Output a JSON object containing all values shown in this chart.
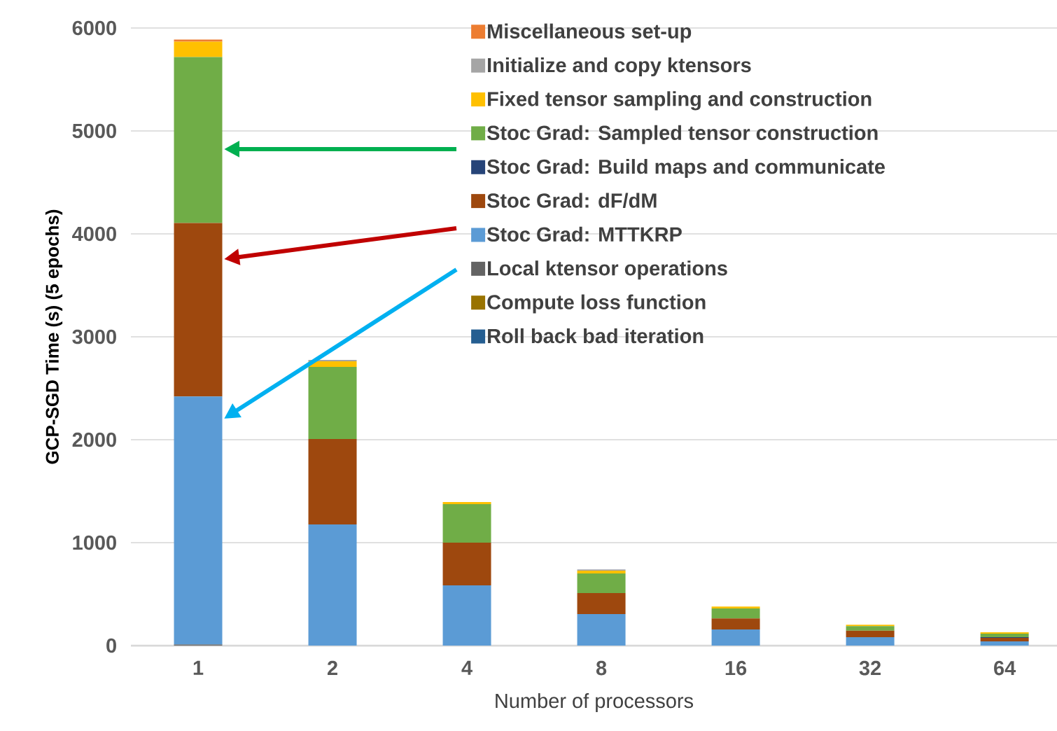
{
  "chart_data": {
    "type": "bar",
    "stacked": true,
    "xlabel": "Number of processors",
    "ylabel": "GCP-SGD Time (s) (5 epochs)",
    "categories": [
      "1",
      "2",
      "4",
      "8",
      "16",
      "32",
      "64"
    ],
    "ylim": [
      0,
      6000
    ],
    "yticks": [
      0,
      1000,
      2000,
      3000,
      4000,
      5000,
      6000
    ],
    "grid": "y",
    "legend": "top right",
    "series": [
      {
        "name": "Roll back bad iteration",
        "color": "#255e91",
        "values": [
          0,
          0,
          0,
          0,
          0,
          0,
          0
        ]
      },
      {
        "name": "Compute loss function",
        "color": "#997300",
        "values": [
          0,
          0,
          0,
          0,
          0,
          0,
          0
        ]
      },
      {
        "name": "Local ktensor operations",
        "color": "#636363",
        "values": [
          10,
          0,
          0,
          0,
          0,
          0,
          0
        ]
      },
      {
        "name": "Stoc Grad: MTTKRP",
        "color": "#5b9bd5",
        "values": [
          2410,
          1177,
          585,
          306,
          156,
          82,
          41
        ]
      },
      {
        "name": "Stoc Grad: dF/dM",
        "color": "#9e480e",
        "values": [
          1685,
          830,
          415,
          204,
          107,
          63,
          34
        ]
      },
      {
        "name": "Stoc Grad: Build maps and communicate",
        "color": "#264478",
        "values": [
          0,
          0,
          0,
          0,
          0,
          0,
          7
        ]
      },
      {
        "name": "Stoc Grad: Sampled tensor construction",
        "color": "#70ad47",
        "values": [
          1612,
          700,
          374,
          190,
          98,
          43,
          34
        ]
      },
      {
        "name": "Fixed tensor sampling and construction",
        "color": "#ffc000",
        "values": [
          150,
          55,
          21,
          28,
          18,
          14,
          13
        ]
      },
      {
        "name": "Initialize and copy ktensors",
        "color": "#a5a5a5",
        "values": [
          0,
          14,
          0,
          12,
          0,
          0,
          0
        ]
      },
      {
        "name": "Miscellaneous set-up",
        "color": "#ed7d31",
        "values": [
          20,
          0,
          0,
          0,
          0,
          0,
          0
        ]
      }
    ]
  }
}
